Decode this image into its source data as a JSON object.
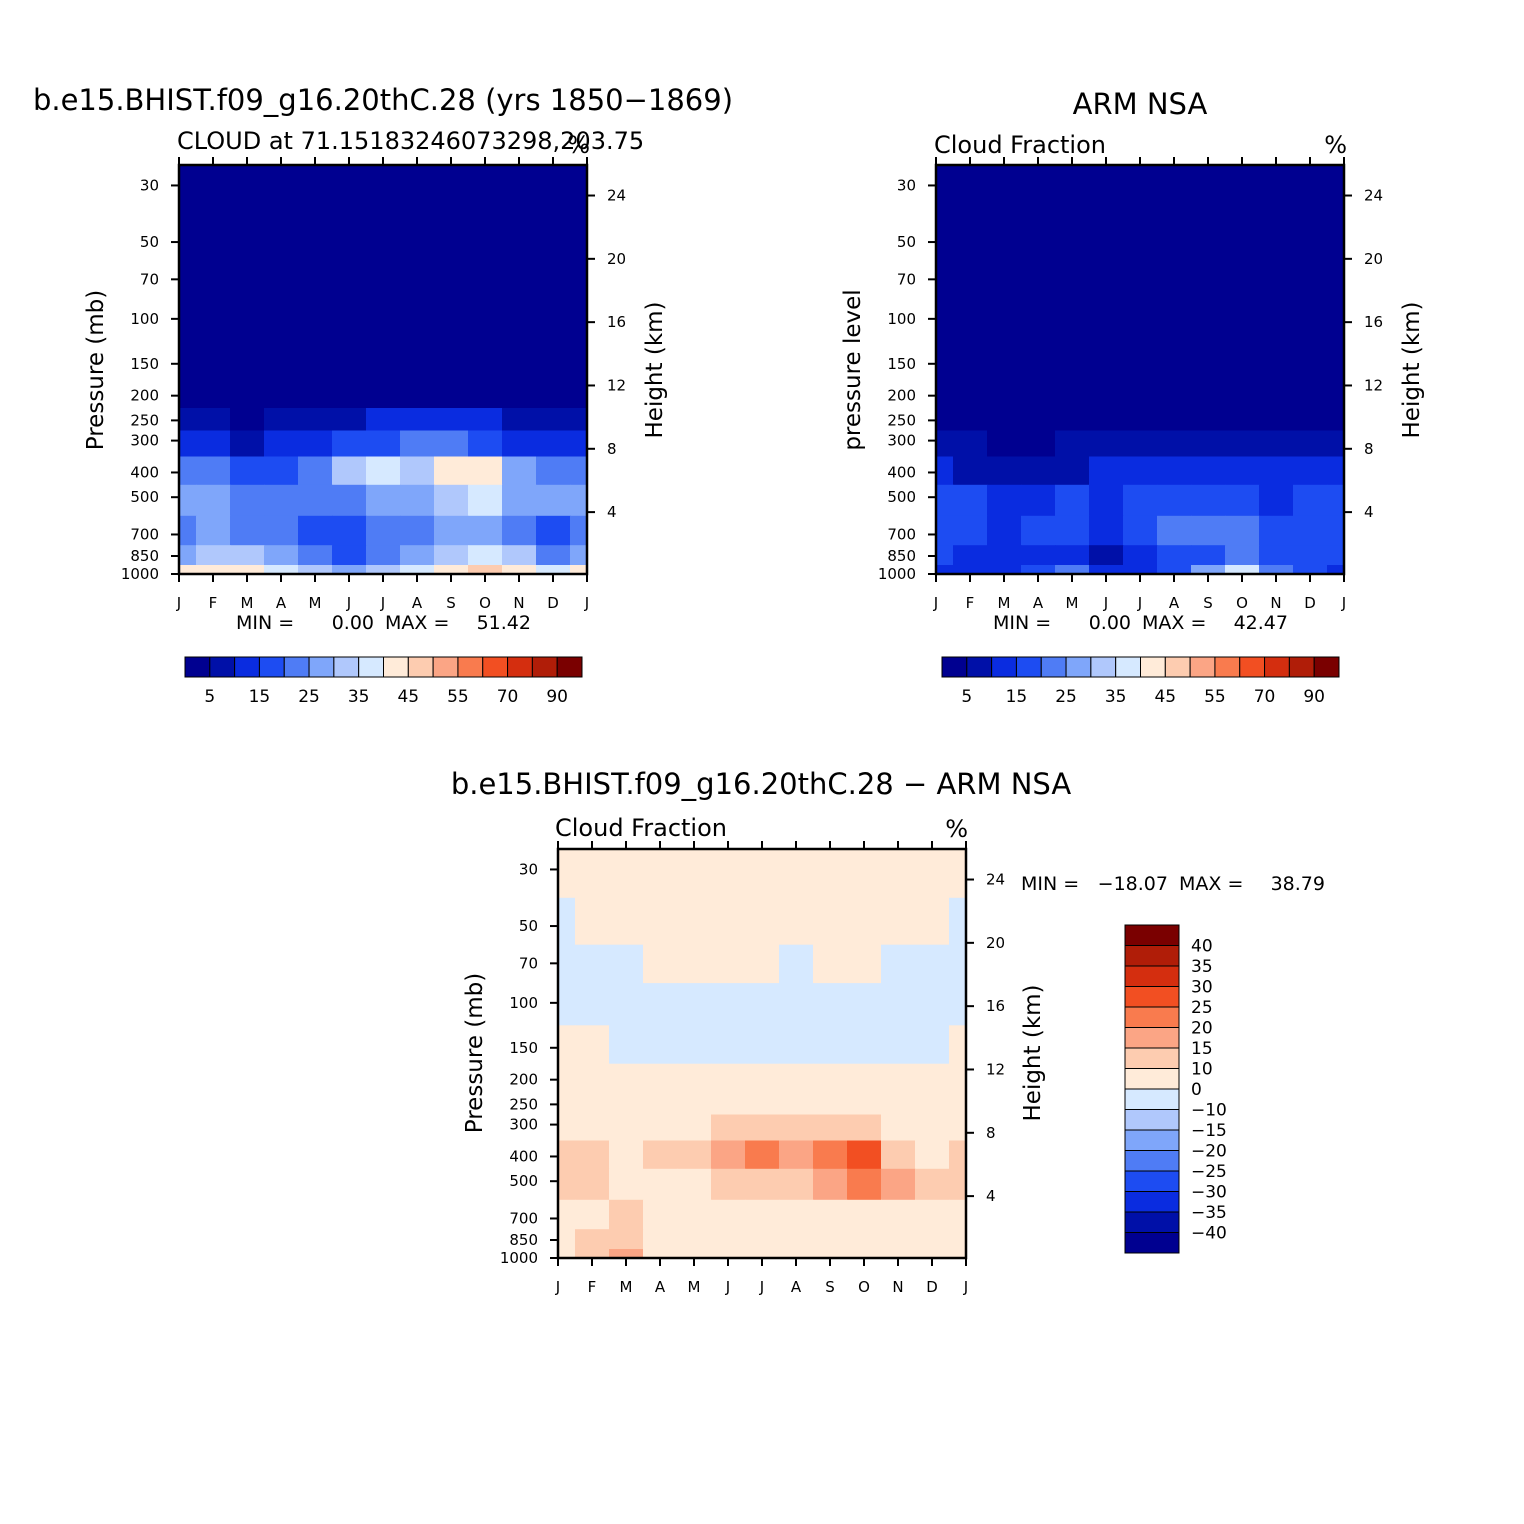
{
  "palette": {
    "model": [
      "#000090",
      "#0010a8",
      "#0a2ce0",
      "#1d4cf2",
      "#4f7cf5",
      "#7fa6fa",
      "#b0c8fc",
      "#d6e9ff",
      "#ffebd9",
      "#fdccb0",
      "#fba585",
      "#f97b4e",
      "#f24f22",
      "#d42e0f",
      "#b01d08",
      "#7a0000"
    ],
    "diff": [
      "#000090",
      "#0010a8",
      "#0a2ce0",
      "#1d4cf2",
      "#4f7cf5",
      "#7fa6fa",
      "#b0c8fc",
      "#d6e9ff",
      "#ffebd9",
      "#fdccb0",
      "#fba585",
      "#f97b4e",
      "#f24f22",
      "#d42e0f",
      "#b01d08",
      "#7a0000"
    ]
  },
  "chart_data": [
    {
      "type": "heatmap",
      "id": "model",
      "title": "b.e15.BHIST.f09_g16.20thC.28 (yrs 1850-1869)",
      "subtitle_left": "CLOUD at 71.15183246073298,203.75",
      "subtitle_right": "%",
      "xlabel": "",
      "ylabel": "Pressure (mb)",
      "ylabel_right": "Height (km)",
      "x_ticks": [
        "J",
        "F",
        "M",
        "A",
        "M",
        "J",
        "J",
        "A",
        "S",
        "O",
        "N",
        "D",
        "J"
      ],
      "y_ticks": [
        "30",
        "50",
        "70",
        "100",
        "150",
        "200",
        "250",
        "300",
        "400",
        "500",
        "700",
        "850",
        "1000"
      ],
      "y_right_ticks": [
        "24",
        "20",
        "16",
        "12",
        "8",
        "4"
      ],
      "stats": {
        "min_label": "MIN =",
        "min": "0.00",
        "max_label": "MAX =",
        "max": "51.42"
      },
      "colorbar": {
        "orientation": "horizontal",
        "labels": [
          "5",
          "15",
          "25",
          "35",
          "45",
          "55",
          "70",
          "90"
        ]
      },
      "levels": [
        30,
        50,
        70,
        100,
        150,
        200,
        250,
        300,
        400,
        500,
        700,
        850,
        1000
      ],
      "values": [
        [
          0,
          0,
          0,
          0,
          0,
          0,
          0,
          0,
          0,
          0,
          0,
          0,
          0
        ],
        [
          0,
          0,
          0,
          0,
          0,
          0,
          0,
          0,
          0,
          0,
          0,
          0,
          0
        ],
        [
          0,
          0,
          0,
          0,
          0,
          0,
          0,
          0,
          0,
          0,
          0,
          0,
          0
        ],
        [
          1,
          1,
          1,
          1,
          1,
          1,
          1,
          1,
          1,
          1,
          1,
          1,
          1
        ],
        [
          1,
          1,
          1,
          1,
          1,
          1,
          1,
          1,
          1,
          1,
          1,
          1,
          1
        ],
        [
          2,
          2,
          1,
          1,
          1,
          2,
          2,
          2,
          2,
          2,
          2,
          1,
          2
        ],
        [
          7,
          6,
          4,
          5,
          6,
          9,
          11,
          11,
          11,
          10,
          8,
          7,
          7
        ],
        [
          12,
          11,
          8,
          10,
          13,
          16,
          19,
          20,
          20,
          18,
          14,
          12,
          12
        ],
        [
          24,
          23,
          15,
          18,
          24,
          32,
          37,
          30,
          40,
          42,
          27,
          20,
          24
        ],
        [
          26,
          28,
          21,
          22,
          20,
          24,
          29,
          28,
          33,
          38,
          27,
          26,
          26
        ],
        [
          21,
          26,
          23,
          23,
          17,
          17,
          21,
          24,
          28,
          28,
          24,
          15,
          21
        ],
        [
          29,
          34,
          30,
          29,
          21,
          15,
          20,
          27,
          32,
          36,
          31,
          23,
          29
        ],
        [
          40,
          44,
          41,
          38,
          32,
          28,
          34,
          38,
          42,
          45,
          43,
          38,
          40
        ]
      ]
    },
    {
      "type": "heatmap",
      "id": "obs",
      "title": "ARM NSA",
      "subtitle_left": "Cloud Fraction",
      "subtitle_right": "%",
      "xlabel": "",
      "ylabel": "pressure level",
      "ylabel_right": "Height (km)",
      "x_ticks": [
        "J",
        "F",
        "M",
        "A",
        "M",
        "J",
        "J",
        "A",
        "S",
        "O",
        "N",
        "D",
        "J"
      ],
      "y_ticks": [
        "30",
        "50",
        "70",
        "100",
        "150",
        "200",
        "250",
        "300",
        "400",
        "500",
        "700",
        "850",
        "1000"
      ],
      "y_right_ticks": [
        "24",
        "20",
        "16",
        "12",
        "8",
        "4"
      ],
      "stats": {
        "min_label": "MIN =",
        "min": "0.00",
        "max_label": "MAX =",
        "max": "42.47"
      },
      "colorbar": {
        "orientation": "horizontal",
        "labels": [
          "5",
          "15",
          "25",
          "35",
          "45",
          "55",
          "70",
          "90"
        ]
      },
      "levels": [
        30,
        50,
        70,
        100,
        150,
        200,
        250,
        300,
        400,
        500,
        700,
        850,
        1000
      ],
      "values": [
        [
          0,
          0,
          0,
          0,
          0,
          0,
          0,
          0,
          0,
          0,
          0,
          0,
          0
        ],
        [
          0,
          0,
          0,
          0,
          0,
          0,
          0,
          0,
          0,
          0,
          0,
          0,
          0
        ],
        [
          0,
          0,
          0,
          0,
          0,
          0,
          0,
          0,
          0,
          0,
          0,
          0,
          0
        ],
        [
          0,
          0,
          0,
          0,
          0,
          0,
          0,
          0,
          0,
          0,
          0,
          0,
          0
        ],
        [
          0,
          0,
          0,
          0,
          0,
          0,
          0,
          0,
          0,
          0,
          0,
          0,
          0
        ],
        [
          1,
          1,
          1,
          1,
          1,
          1,
          1,
          1,
          1,
          1,
          1,
          1,
          1
        ],
        [
          2,
          2,
          1,
          1,
          2,
          3,
          4,
          3,
          2,
          2,
          2,
          3,
          2
        ],
        [
          6,
          5,
          3,
          4,
          5,
          7,
          8,
          8,
          6,
          5,
          6,
          7,
          6
        ],
        [
          10,
          9,
          7,
          8,
          9,
          11,
          13,
          12,
          11,
          10,
          10,
          11,
          10
        ],
        [
          16,
          15,
          13,
          14,
          16,
          11,
          17,
          18,
          17,
          15,
          14,
          16,
          16
        ],
        [
          18,
          17,
          13,
          17,
          15,
          10,
          15,
          20,
          21,
          20,
          17,
          18,
          18
        ],
        [
          17,
          14,
          12,
          13,
          14,
          6,
          13,
          16,
          19,
          21,
          17,
          15,
          17
        ],
        [
          12,
          11,
          12,
          15,
          20,
          10,
          14,
          18,
          28,
          37,
          24,
          18,
          12
        ]
      ]
    },
    {
      "type": "heatmap",
      "id": "diff",
      "title": "b.e15.BHIST.f09_g16.20thC.28 - ARM NSA",
      "subtitle_left": "Cloud Fraction",
      "subtitle_right": "%",
      "xlabel": "",
      "ylabel": "Pressure (mb)",
      "ylabel_right": "Height (km)",
      "x_ticks": [
        "J",
        "F",
        "M",
        "A",
        "M",
        "J",
        "J",
        "A",
        "S",
        "O",
        "N",
        "D",
        "J"
      ],
      "y_ticks": [
        "30",
        "50",
        "70",
        "100",
        "150",
        "200",
        "250",
        "300",
        "400",
        "500",
        "700",
        "850",
        "1000"
      ],
      "y_right_ticks": [
        "24",
        "20",
        "16",
        "12",
        "8",
        "4"
      ],
      "stats": {
        "min_label": "MIN =",
        "min": "-18.07",
        "max_label": "MAX =",
        "max": "38.79"
      },
      "colorbar": {
        "orientation": "vertical",
        "labels": [
          "40",
          "35",
          "30",
          "25",
          "20",
          "15",
          "10",
          "0",
          "-10",
          "-15",
          "-20",
          "-25",
          "-30",
          "-35",
          "-40"
        ]
      },
      "levels": [
        30,
        50,
        70,
        100,
        150,
        200,
        250,
        300,
        400,
        500,
        700,
        850,
        1000
      ],
      "values": [
        [
          1,
          1,
          1,
          1,
          1,
          1,
          1,
          1,
          1,
          1,
          1,
          1,
          1
        ],
        [
          -1,
          1,
          1,
          1,
          1,
          1,
          1,
          1,
          1,
          1,
          1,
          1,
          -1
        ],
        [
          -1,
          -1,
          -1,
          1,
          1,
          1,
          1,
          -1,
          1,
          1,
          -1,
          -1,
          -1
        ],
        [
          -1,
          -1,
          -1,
          -1,
          -1,
          -1,
          -1,
          -1,
          -1,
          -1,
          -1,
          -1,
          -1
        ],
        [
          1,
          1,
          -1,
          -1,
          -1,
          -1,
          -1,
          -1,
          -1,
          -1,
          -1,
          -1,
          1
        ],
        [
          1,
          1,
          1,
          1,
          1,
          1,
          1,
          1,
          1,
          1,
          1,
          1,
          1
        ],
        [
          1,
          1,
          1,
          1,
          1,
          1,
          1,
          1,
          1,
          1,
          1,
          1,
          1
        ],
        [
          4,
          3,
          4,
          5,
          7,
          11,
          13,
          13,
          14,
          12,
          9,
          5,
          4
        ],
        [
          11,
          11,
          9,
          10,
          11,
          16,
          20,
          16,
          24,
          26,
          14,
          9,
          11
        ],
        [
          10,
          14,
          9,
          9,
          6,
          10,
          11,
          10,
          16,
          21,
          15,
          10,
          10
        ],
        [
          6,
          9,
          10,
          8,
          4,
          4,
          5,
          6,
          8,
          8,
          8,
          0,
          6
        ],
        [
          8,
          11,
          12,
          9,
          4,
          3,
          3,
          7,
          9,
          6,
          7,
          3,
          8
        ],
        [
          9,
          13,
          16,
          9,
          6,
          3,
          4,
          3,
          5,
          2,
          3,
          5,
          9
        ]
      ]
    }
  ]
}
